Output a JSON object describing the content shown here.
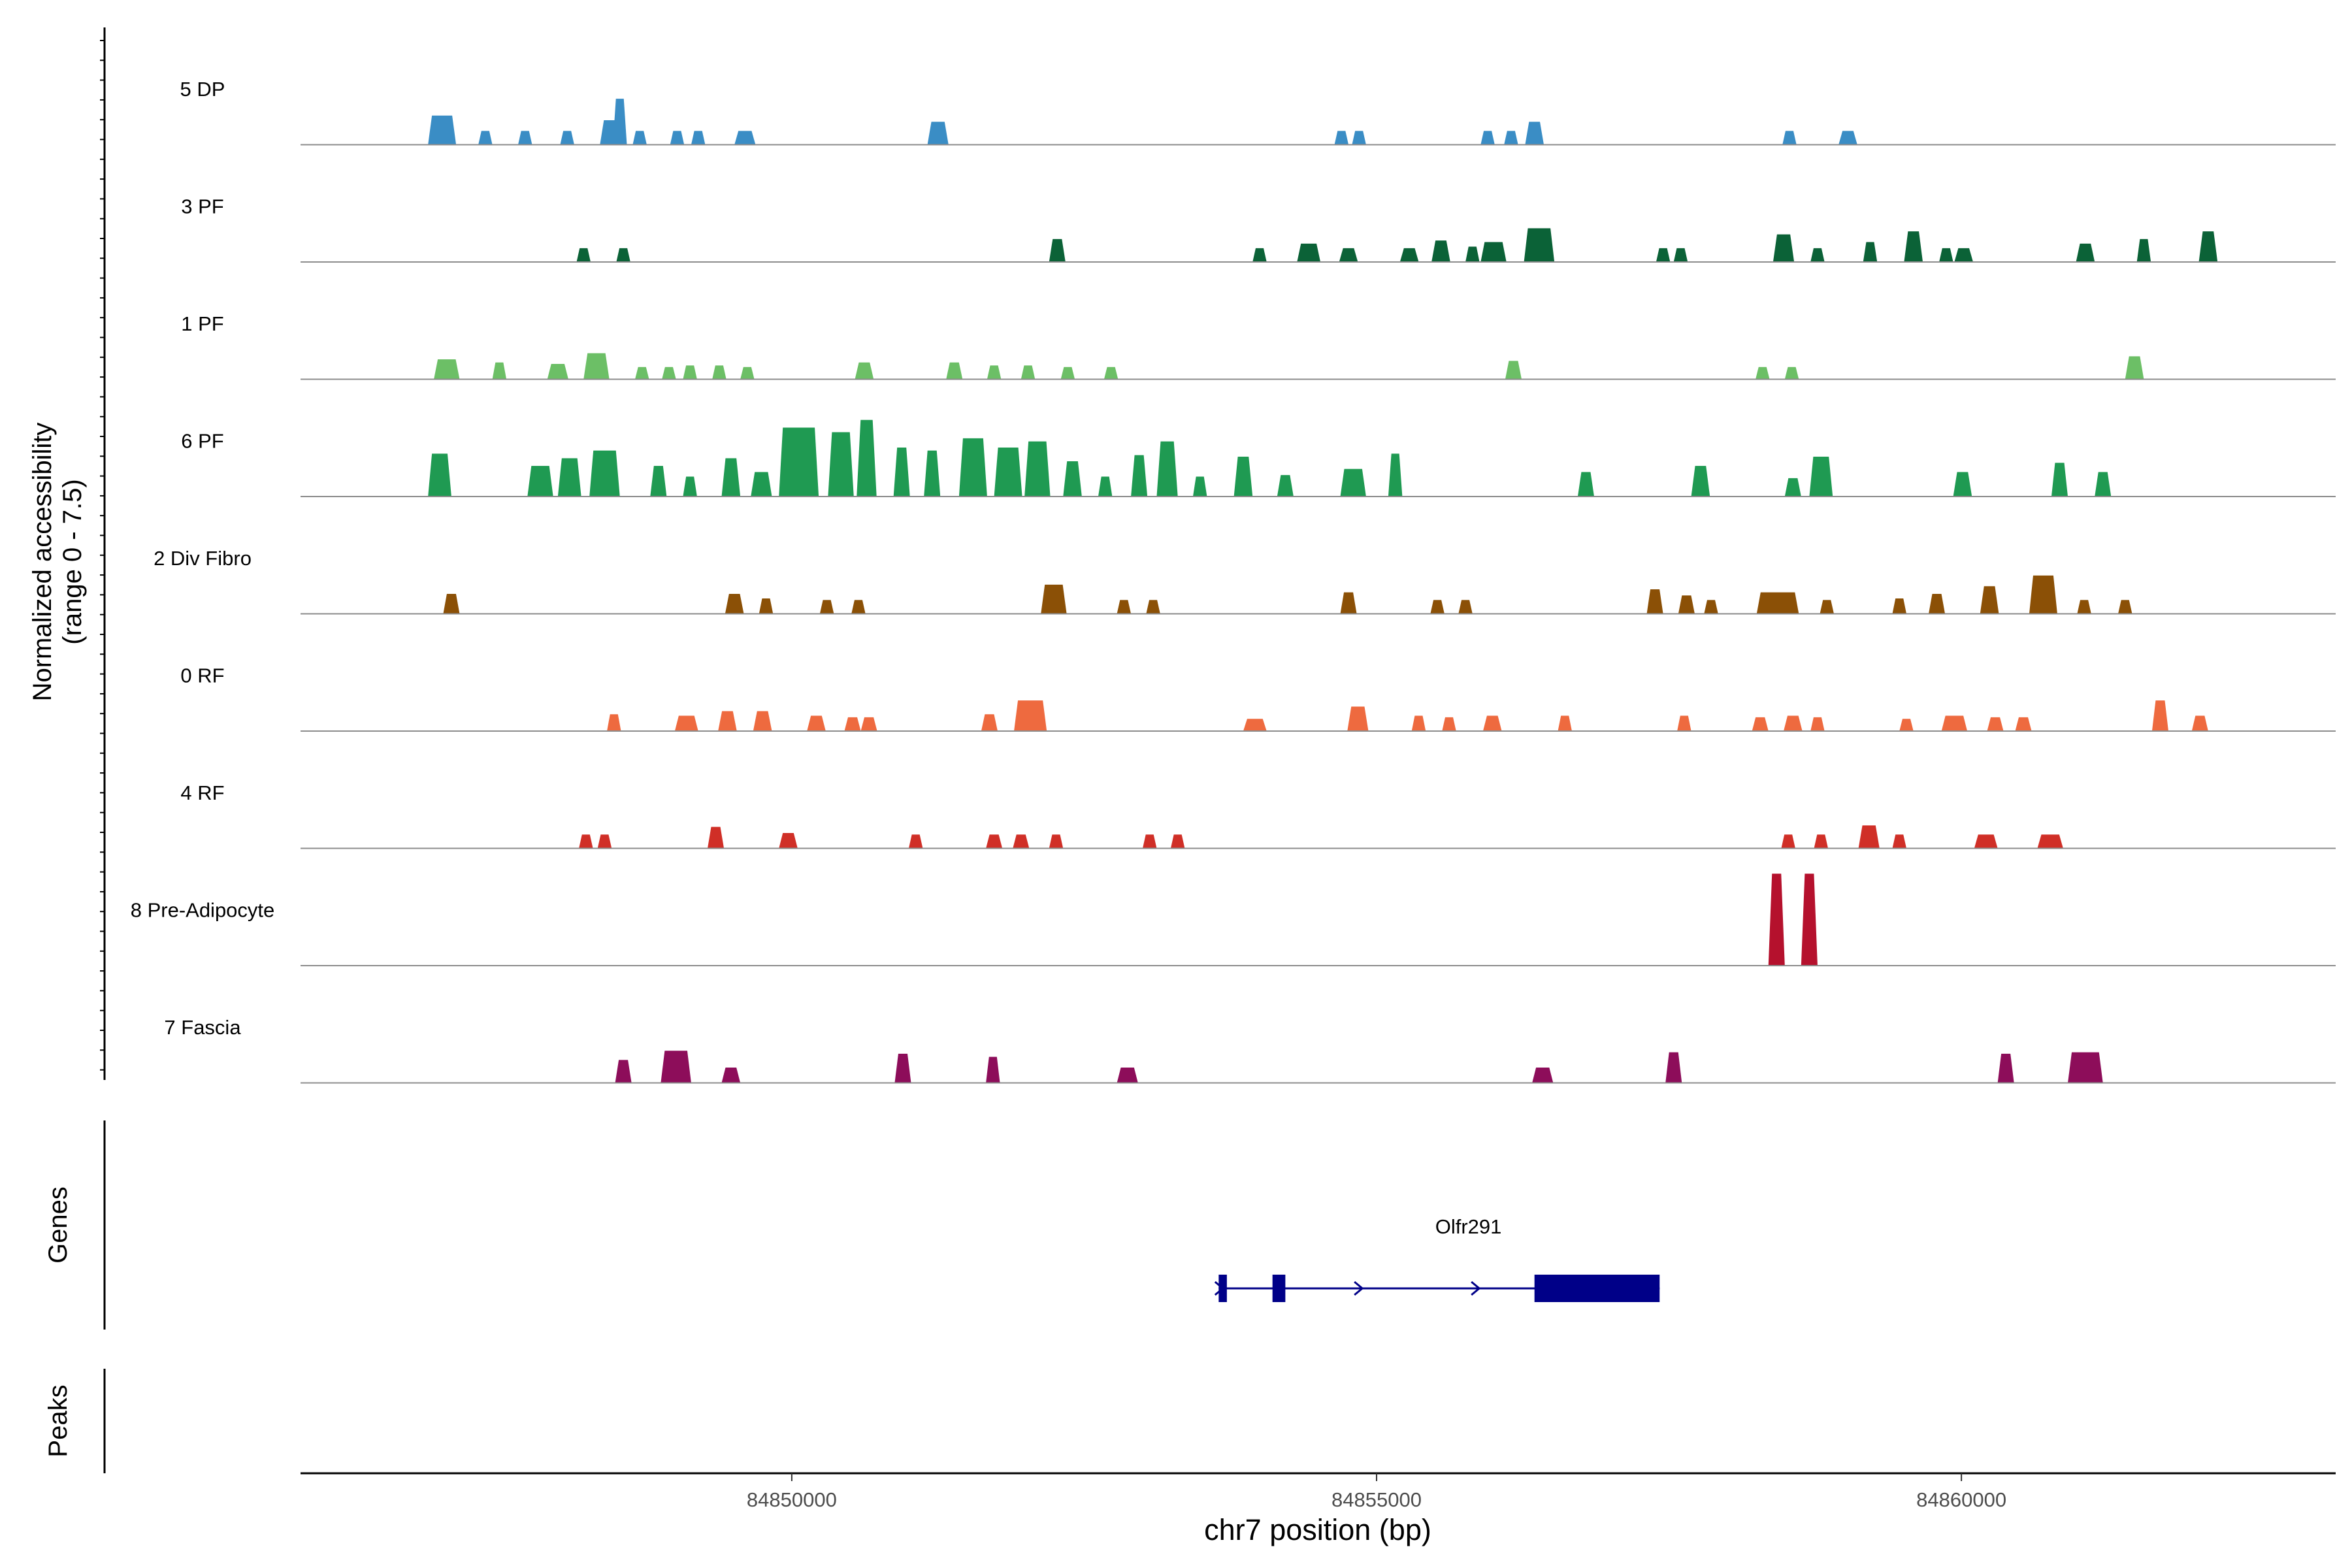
{
  "chart_data": {
    "type": "area",
    "title": "",
    "xlabel": "chr7 position (bp)",
    "ylabel_line1": "Normalized accessibility",
    "ylabel_line2": "(range 0 - 7.5)",
    "xlim": [
      84845800,
      84863200
    ],
    "ylim": [
      0,
      7.5
    ],
    "x_ticks": [
      {
        "value": 84850000,
        "label": "84850000"
      },
      {
        "value": 84855000,
        "label": "84855000"
      },
      {
        "value": 84860000,
        "label": "84860000"
      }
    ],
    "tracks_panel_label": "",
    "genes_panel_label": "Genes",
    "peaks_panel_label": "Peaks",
    "series": [
      {
        "name": "5 DP",
        "color": "#3a8dc5",
        "peaks": [
          [
            84847010,
            240,
            1.9
          ],
          [
            84847380,
            120,
            0.9
          ],
          [
            84847720,
            120,
            0.9
          ],
          [
            84848080,
            120,
            0.9
          ],
          [
            84848470,
            220,
            1.6
          ],
          [
            84848530,
            120,
            3.0
          ],
          [
            84848700,
            120,
            0.9
          ],
          [
            84849020,
            120,
            0.9
          ],
          [
            84849200,
            120,
            0.9
          ],
          [
            84849600,
            180,
            0.9
          ],
          [
            84851250,
            180,
            1.5
          ],
          [
            84854700,
            120,
            0.9
          ],
          [
            84854850,
            120,
            0.9
          ],
          [
            84855950,
            120,
            0.9
          ],
          [
            84856150,
            120,
            0.9
          ],
          [
            84856350,
            160,
            1.5
          ],
          [
            84858530,
            120,
            0.9
          ],
          [
            84859030,
            160,
            0.9
          ]
        ]
      },
      {
        "name": "3 PF",
        "color": "#0b6237",
        "peaks": [
          [
            84848220,
            120,
            0.9
          ],
          [
            84848560,
            120,
            0.9
          ],
          [
            84852270,
            140,
            1.5
          ],
          [
            84854000,
            120,
            0.9
          ],
          [
            84854420,
            200,
            1.2
          ],
          [
            84854760,
            160,
            0.9
          ],
          [
            84855280,
            160,
            0.9
          ],
          [
            84855550,
            160,
            1.4
          ],
          [
            84855820,
            120,
            1.0
          ],
          [
            84856000,
            220,
            1.3
          ],
          [
            84856390,
            260,
            2.2
          ],
          [
            84857450,
            120,
            0.9
          ],
          [
            84857600,
            120,
            0.9
          ],
          [
            84858480,
            180,
            1.8
          ],
          [
            84858770,
            120,
            0.9
          ],
          [
            84859220,
            120,
            1.3
          ],
          [
            84859590,
            160,
            2.0
          ],
          [
            84859870,
            120,
            0.9
          ],
          [
            84860020,
            160,
            0.9
          ],
          [
            84861060,
            160,
            1.2
          ],
          [
            84861560,
            120,
            1.5
          ],
          [
            84862110,
            160,
            2.0
          ]
        ]
      },
      {
        "name": "1 PF",
        "color": "#6cbf66",
        "peaks": [
          [
            84847050,
            220,
            1.3
          ],
          [
            84847500,
            120,
            1.1
          ],
          [
            84848000,
            180,
            1.0
          ],
          [
            84848330,
            220,
            1.7
          ],
          [
            84848720,
            120,
            0.8
          ],
          [
            84848950,
            120,
            0.8
          ],
          [
            84849130,
            120,
            0.9
          ],
          [
            84849380,
            120,
            0.9
          ],
          [
            84849620,
            120,
            0.8
          ],
          [
            84850620,
            160,
            1.1
          ],
          [
            84851390,
            140,
            1.1
          ],
          [
            84851730,
            120,
            0.9
          ],
          [
            84852020,
            120,
            0.9
          ],
          [
            84852360,
            120,
            0.8
          ],
          [
            84852730,
            120,
            0.8
          ],
          [
            84856170,
            140,
            1.2
          ],
          [
            84858300,
            120,
            0.8
          ],
          [
            84858550,
            120,
            0.8
          ],
          [
            84861480,
            160,
            1.5
          ]
        ]
      },
      {
        "name": "6 PF",
        "color": "#1f9a52",
        "peaks": [
          [
            84846990,
            200,
            2.8
          ],
          [
            84847850,
            220,
            2.0
          ],
          [
            84848100,
            200,
            2.5
          ],
          [
            84848400,
            260,
            3.0
          ],
          [
            84848860,
            140,
            2.0
          ],
          [
            84849130,
            120,
            1.3
          ],
          [
            84849480,
            160,
            2.5
          ],
          [
            84849740,
            180,
            1.6
          ],
          [
            84850060,
            340,
            4.5
          ],
          [
            84850420,
            220,
            4.2
          ],
          [
            84850640,
            170,
            5.0
          ],
          [
            84850940,
            140,
            3.2
          ],
          [
            84851200,
            140,
            3.0
          ],
          [
            84851550,
            240,
            3.8
          ],
          [
            84851850,
            240,
            3.2
          ],
          [
            84852100,
            220,
            3.6
          ],
          [
            84852400,
            160,
            2.3
          ],
          [
            84852680,
            120,
            1.3
          ],
          [
            84852970,
            140,
            2.7
          ],
          [
            84853210,
            180,
            3.6
          ],
          [
            84853490,
            120,
            1.3
          ],
          [
            84853860,
            160,
            2.6
          ],
          [
            84854220,
            140,
            1.4
          ],
          [
            84854800,
            220,
            1.8
          ],
          [
            84855160,
            120,
            2.8
          ],
          [
            84856790,
            140,
            1.6
          ],
          [
            84857770,
            160,
            2.0
          ],
          [
            84858560,
            140,
            1.2
          ],
          [
            84858800,
            200,
            2.6
          ],
          [
            84860010,
            160,
            1.6
          ],
          [
            84860840,
            140,
            2.2
          ],
          [
            84861210,
            140,
            1.6
          ]
        ]
      },
      {
        "name": "2 Div Fibro",
        "color": "#8b5006",
        "peaks": [
          [
            84847090,
            140,
            1.3
          ],
          [
            84849510,
            160,
            1.3
          ],
          [
            84849780,
            120,
            1.0
          ],
          [
            84850300,
            120,
            0.9
          ],
          [
            84850570,
            120,
            0.9
          ],
          [
            84852240,
            220,
            1.9
          ],
          [
            84852840,
            120,
            0.9
          ],
          [
            84853090,
            120,
            0.9
          ],
          [
            84854760,
            140,
            1.4
          ],
          [
            84855520,
            120,
            0.9
          ],
          [
            84855760,
            120,
            0.9
          ],
          [
            84857380,
            140,
            1.6
          ],
          [
            84857650,
            140,
            1.2
          ],
          [
            84857860,
            120,
            0.9
          ],
          [
            84858430,
            360,
            1.4
          ],
          [
            84858850,
            120,
            0.9
          ],
          [
            84859470,
            120,
            1.0
          ],
          [
            84859790,
            140,
            1.3
          ],
          [
            84860240,
            160,
            1.8
          ],
          [
            84860700,
            240,
            2.5
          ],
          [
            84861050,
            120,
            0.9
          ],
          [
            84861400,
            120,
            0.9
          ]
        ]
      },
      {
        "name": "0 RF",
        "color": "#ee6a3f",
        "peaks": [
          [
            84848480,
            120,
            1.1
          ],
          [
            84849100,
            200,
            1.0
          ],
          [
            84849450,
            160,
            1.3
          ],
          [
            84849750,
            160,
            1.3
          ],
          [
            84850210,
            160,
            1.0
          ],
          [
            84850520,
            140,
            0.9
          ],
          [
            84850660,
            140,
            0.9
          ],
          [
            84851690,
            140,
            1.1
          ],
          [
            84852040,
            280,
            2.0
          ],
          [
            84853960,
            200,
            0.8
          ],
          [
            84854840,
            180,
            1.6
          ],
          [
            84855360,
            120,
            1.0
          ],
          [
            84855620,
            120,
            0.9
          ],
          [
            84855990,
            160,
            1.0
          ],
          [
            84856610,
            120,
            1.0
          ],
          [
            84857630,
            120,
            1.0
          ],
          [
            84858280,
            140,
            0.9
          ],
          [
            84858560,
            160,
            1.0
          ],
          [
            84858770,
            120,
            0.9
          ],
          [
            84859530,
            120,
            0.8
          ],
          [
            84859940,
            220,
            1.0
          ],
          [
            84860290,
            140,
            0.9
          ],
          [
            84860530,
            140,
            0.9
          ],
          [
            84861700,
            140,
            2.0
          ],
          [
            84862040,
            140,
            1.0
          ]
        ]
      },
      {
        "name": "4 RF",
        "color": "#d02f27",
        "peaks": [
          [
            84848240,
            120,
            0.9
          ],
          [
            84848400,
            120,
            0.9
          ],
          [
            84849350,
            140,
            1.4
          ],
          [
            84849970,
            160,
            1.0
          ],
          [
            84851060,
            120,
            0.9
          ],
          [
            84851730,
            140,
            0.9
          ],
          [
            84851960,
            140,
            0.9
          ],
          [
            84852260,
            120,
            0.9
          ],
          [
            84853060,
            120,
            0.9
          ],
          [
            84853300,
            120,
            0.9
          ],
          [
            84858520,
            120,
            0.9
          ],
          [
            84858800,
            120,
            0.9
          ],
          [
            84859210,
            180,
            1.5
          ],
          [
            84859470,
            120,
            0.9
          ],
          [
            84860210,
            200,
            0.9
          ],
          [
            84860760,
            220,
            0.9
          ]
        ]
      },
      {
        "name": "8 Pre-Adipocyte",
        "color": "#b5112d",
        "peaks": [
          [
            84858420,
            140,
            6.0
          ],
          [
            84858700,
            140,
            6.0
          ]
        ]
      },
      {
        "name": "7 Fascia",
        "color": "#8d0d5a",
        "peaks": [
          [
            84848560,
            140,
            1.5
          ],
          [
            84849010,
            260,
            2.1
          ],
          [
            84849480,
            160,
            1.0
          ],
          [
            84850950,
            140,
            1.9
          ],
          [
            84851720,
            120,
            1.7
          ],
          [
            84852870,
            180,
            1.0
          ],
          [
            84856420,
            180,
            1.0
          ],
          [
            84857540,
            140,
            2.0
          ],
          [
            84860380,
            140,
            1.9
          ],
          [
            84861060,
            300,
            2.0
          ]
        ]
      }
    ],
    "gene": {
      "name": "Olfr291",
      "color": "#000088",
      "start": 84853650,
      "end": 84857420,
      "strand": "+",
      "exons": [
        [
          84853650,
          84853720
        ],
        [
          84854110,
          84854220
        ],
        [
          84856350,
          84857420
        ]
      ]
    }
  }
}
